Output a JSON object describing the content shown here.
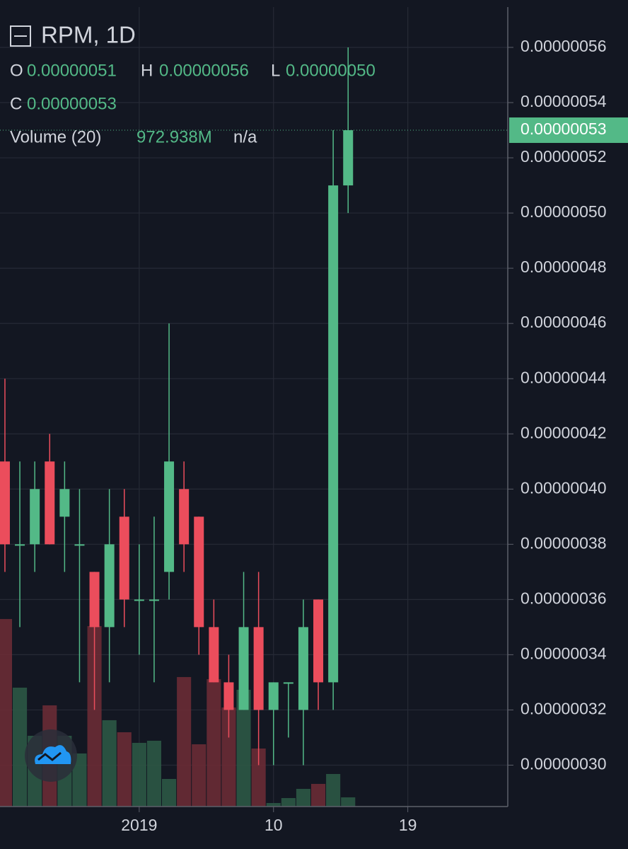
{
  "chart_data": {
    "type": "candlestick",
    "header": {
      "symbol": "RPM, 1D",
      "open_label": "O",
      "open": "0.00000051",
      "high_label": "H",
      "high": "0.00000056",
      "low_label": "L",
      "low": "0.00000050",
      "close_label": "C",
      "close": "0.00000053",
      "volume_label": "Volume (20)",
      "volume": "972.938M",
      "volume_ma": "n/a",
      "last_price": "0.00000053"
    },
    "x": [
      0,
      1,
      2,
      3,
      4,
      5,
      6,
      7,
      8,
      9,
      10,
      11,
      12,
      13,
      14,
      15,
      16,
      17,
      18,
      19,
      20,
      21,
      22,
      23
    ],
    "open": [
      4.1e-07,
      3.8e-07,
      3.8e-07,
      4.1e-07,
      3.9e-07,
      3.8e-07,
      3.7e-07,
      3.5e-07,
      3.9e-07,
      3.6e-07,
      3.6e-07,
      3.7e-07,
      4e-07,
      3.9e-07,
      3.5e-07,
      3.3e-07,
      3.2e-07,
      3.5e-07,
      3.2e-07,
      3.3e-07,
      3.2e-07,
      3.6e-07,
      3.3e-07,
      5.1e-07
    ],
    "high": [
      4.4e-07,
      4.1e-07,
      4.1e-07,
      4.2e-07,
      4.1e-07,
      4e-07,
      3.7e-07,
      4e-07,
      4e-07,
      3.8e-07,
      3.9e-07,
      4.6e-07,
      4.1e-07,
      3.9e-07,
      3.6e-07,
      3.4e-07,
      3.7e-07,
      3.7e-07,
      3.3e-07,
      3.3e-07,
      3.6e-07,
      3.6e-07,
      5.3e-07,
      5.6e-07
    ],
    "low": [
      3.7e-07,
      3.5e-07,
      3.7e-07,
      3.8e-07,
      3.7e-07,
      3.3e-07,
      3.2e-07,
      3.3e-07,
      3.5e-07,
      3.4e-07,
      3.3e-07,
      3.6e-07,
      3.7e-07,
      3.4e-07,
      3.3e-07,
      3.1e-07,
      3.2e-07,
      3e-07,
      3e-07,
      3.1e-07,
      3e-07,
      3.2e-07,
      3.2e-07,
      5e-07
    ],
    "close": [
      3.8e-07,
      3.8e-07,
      4e-07,
      3.8e-07,
      4e-07,
      3.8e-07,
      3.5e-07,
      3.8e-07,
      3.6e-07,
      3.6e-07,
      3.6e-07,
      4.1e-07,
      3.8e-07,
      3.5e-07,
      3.3e-07,
      3.2e-07,
      3.5e-07,
      3.2e-07,
      3.3e-07,
      3.3e-07,
      3.5e-07,
      3.3e-07,
      5.1e-07,
      5.3e-07
    ],
    "volume": [
      19822,
      12566,
      7480,
      10696,
      7480,
      5610,
      19074,
      9126,
      7854,
      6732,
      6956,
      2917,
      13688,
      6582,
      13464,
      10472,
      12342,
      6134,
      374,
      898,
      1870,
      2394,
      3441,
      972.938
    ],
    "volume_ylim": [
      0,
      84500
    ],
    "up_color": "#53b987",
    "down_color": "#eb4d5c",
    "volume_up_color": "#2c5845",
    "volume_down_color": "#6a2b35",
    "xlim": [
      -0.33,
      33.7
    ],
    "xticks": [
      {
        "value": 9,
        "label": "2019"
      },
      {
        "value": 18,
        "label": "10"
      },
      {
        "value": 27,
        "label": "19"
      }
    ],
    "ylim": [
      2.85e-07,
      5.746e-07
    ],
    "yticks": [
      {
        "value": 3e-07,
        "label": "0.00000030"
      },
      {
        "value": 3.2e-07,
        "label": "0.00000032"
      },
      {
        "value": 3.4e-07,
        "label": "0.00000034"
      },
      {
        "value": 3.6e-07,
        "label": "0.00000036"
      },
      {
        "value": 3.8e-07,
        "label": "0.00000038"
      },
      {
        "value": 4e-07,
        "label": "0.00000040"
      },
      {
        "value": 4.2e-07,
        "label": "0.00000042"
      },
      {
        "value": 4.4e-07,
        "label": "0.00000044"
      },
      {
        "value": 4.6e-07,
        "label": "0.00000046"
      },
      {
        "value": 4.8e-07,
        "label": "0.00000048"
      },
      {
        "value": 5e-07,
        "label": "0.00000050"
      },
      {
        "value": 5.2e-07,
        "label": "0.00000052"
      },
      {
        "value": 5.4e-07,
        "label": "0.00000054"
      },
      {
        "value": 5.6e-07,
        "label": "0.00000056"
      }
    ],
    "grid": true
  }
}
